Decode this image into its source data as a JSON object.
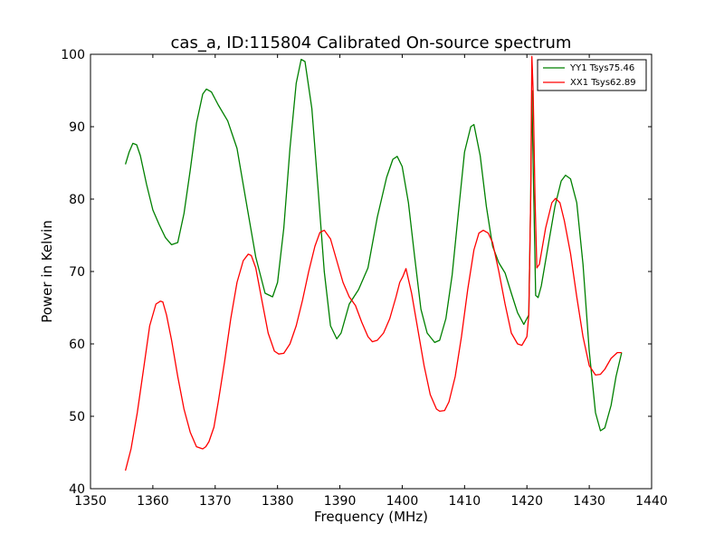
{
  "chart_data": {
    "type": "line",
    "title": "cas_a, ID:115804 Calibrated On-source spectrum",
    "xlabel": "Frequency (MHz)",
    "ylabel": "Power in Kelvin",
    "xlim": [
      1350,
      1440
    ],
    "ylim": [
      40,
      100
    ],
    "xticks": [
      1350,
      1360,
      1370,
      1380,
      1390,
      1400,
      1410,
      1420,
      1430,
      1440
    ],
    "yticks": [
      40,
      50,
      60,
      70,
      80,
      90,
      100
    ],
    "grid": false,
    "legend_position": "top-right",
    "series": [
      {
        "name": "YY1 Tsys75.46",
        "color": "#008000",
        "x": [
          1355.6,
          1356.2,
          1356.8,
          1357.4,
          1358.0,
          1359.0,
          1360.0,
          1361.0,
          1362.0,
          1363.0,
          1364.0,
          1365.0,
          1366.0,
          1367.0,
          1368.0,
          1368.6,
          1369.4,
          1370.5,
          1372.0,
          1373.5,
          1375.0,
          1376.5,
          1378.0,
          1379.2,
          1380.0,
          1381.0,
          1382.0,
          1383.0,
          1383.8,
          1384.4,
          1385.5,
          1386.5,
          1387.5,
          1388.5,
          1389.5,
          1390.2,
          1391.5,
          1393.0,
          1394.5,
          1396.0,
          1397.5,
          1398.5,
          1399.2,
          1400.0,
          1401.0,
          1402.0,
          1403.0,
          1404.0,
          1405.2,
          1406.0,
          1407.0,
          1408.0,
          1409.0,
          1410.0,
          1411.0,
          1411.5,
          1412.5,
          1413.5,
          1414.5,
          1415.5,
          1416.5,
          1417.5,
          1418.5,
          1419.5,
          1420.3,
          1420.6,
          1420.8,
          1421.0,
          1421.4,
          1421.8,
          1422.3,
          1423.5,
          1424.5,
          1425.5,
          1426.2,
          1427.0,
          1428.0,
          1429.0,
          1430.0,
          1431.0,
          1431.8,
          1432.5,
          1433.5,
          1434.3,
          1435.2
        ],
        "values": [
          84.8,
          86.5,
          87.7,
          87.5,
          86.0,
          82.0,
          78.5,
          76.5,
          74.7,
          73.7,
          74.0,
          78.0,
          84.0,
          90.5,
          94.5,
          95.2,
          94.8,
          93.0,
          90.8,
          87.0,
          79.5,
          72.0,
          67.0,
          66.5,
          68.5,
          76.0,
          87.0,
          96.0,
          99.3,
          99.0,
          92.5,
          81.5,
          70.0,
          62.5,
          60.7,
          61.5,
          65.5,
          67.5,
          70.5,
          77.5,
          83.0,
          85.5,
          85.9,
          84.5,
          79.5,
          72.0,
          64.8,
          61.5,
          60.2,
          60.5,
          63.5,
          69.5,
          78.0,
          86.5,
          90.0,
          90.3,
          86.0,
          79.0,
          73.5,
          71.2,
          69.8,
          67.0,
          64.3,
          62.7,
          64.0,
          80.0,
          95.0,
          85.0,
          66.7,
          66.4,
          68.0,
          74.0,
          79.0,
          82.5,
          83.3,
          82.8,
          79.5,
          71.0,
          59.0,
          50.5,
          48.0,
          48.4,
          51.5,
          55.5,
          58.8
        ]
      },
      {
        "name": "XX1 Tsys62.89",
        "color": "#ff0000",
        "x": [
          1355.6,
          1356.5,
          1357.5,
          1358.5,
          1359.5,
          1360.5,
          1361.2,
          1361.6,
          1362.2,
          1363.0,
          1364.0,
          1365.0,
          1366.0,
          1367.0,
          1368.0,
          1368.5,
          1369.0,
          1369.8,
          1370.5,
          1371.5,
          1372.5,
          1373.5,
          1374.5,
          1375.3,
          1375.8,
          1376.5,
          1377.5,
          1378.5,
          1379.5,
          1380.2,
          1381.0,
          1382.0,
          1383.0,
          1384.0,
          1385.0,
          1386.0,
          1386.8,
          1387.5,
          1388.5,
          1389.5,
          1390.5,
          1391.5,
          1392.5,
          1393.5,
          1394.5,
          1395.2,
          1396.0,
          1397.0,
          1398.0,
          1399.0,
          1399.6,
          1400.1,
          1400.6,
          1401.5,
          1402.5,
          1403.5,
          1404.5,
          1405.5,
          1406.0,
          1406.8,
          1407.5,
          1408.5,
          1409.5,
          1410.5,
          1411.5,
          1412.3,
          1413.0,
          1413.8,
          1414.5,
          1415.5,
          1416.5,
          1417.5,
          1418.5,
          1419.2,
          1420.0,
          1420.3,
          1420.6,
          1420.8,
          1421.0,
          1421.3,
          1421.6,
          1422.0,
          1423.0,
          1424.0,
          1424.6,
          1425.3,
          1426.0,
          1427.0,
          1428.0,
          1429.0,
          1430.0,
          1431.0,
          1431.8,
          1432.5,
          1433.5,
          1434.5,
          1435.2
        ],
        "values": [
          42.5,
          45.5,
          50.5,
          56.5,
          62.5,
          65.5,
          65.9,
          65.8,
          64.0,
          60.5,
          55.5,
          51.0,
          47.8,
          45.8,
          45.5,
          45.8,
          46.5,
          48.5,
          52.0,
          57.5,
          63.5,
          68.5,
          71.5,
          72.4,
          72.2,
          70.5,
          66.0,
          61.5,
          59.0,
          58.6,
          58.7,
          60.0,
          62.5,
          66.0,
          70.0,
          73.5,
          75.4,
          75.7,
          74.5,
          71.5,
          68.5,
          66.5,
          65.3,
          63.0,
          61.0,
          60.3,
          60.5,
          61.5,
          63.5,
          66.5,
          68.5,
          69.3,
          70.4,
          67.0,
          62.0,
          57.0,
          53.0,
          51.0,
          50.7,
          50.8,
          52.0,
          55.5,
          61.0,
          67.5,
          73.0,
          75.3,
          75.7,
          75.3,
          74.0,
          70.0,
          65.5,
          61.5,
          60.0,
          59.8,
          61.0,
          64.0,
          80.0,
          99.7,
          95.0,
          80.0,
          70.5,
          71.0,
          76.0,
          79.5,
          80.1,
          79.5,
          77.0,
          72.5,
          66.5,
          61.0,
          57.0,
          55.7,
          55.8,
          56.5,
          58.0,
          58.8,
          58.8
        ]
      }
    ]
  }
}
